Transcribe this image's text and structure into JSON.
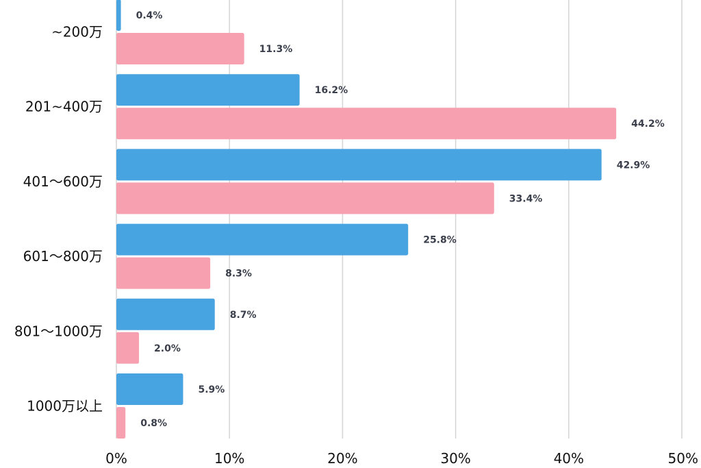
{
  "chart_data": {
    "type": "bar",
    "orientation": "horizontal",
    "categories": [
      "~200万",
      "201~400万",
      "401〜600万",
      "601〜800万",
      "801〜1000万",
      "1000万以上"
    ],
    "series": [
      {
        "values": [
          0.4,
          16.2,
          42.9,
          25.8,
          8.7,
          5.9
        ],
        "color": "#48a4e0"
      },
      {
        "values": [
          11.3,
          44.2,
          33.4,
          8.3,
          2.0,
          0.8
        ],
        "color": "#f6a0b0"
      }
    ],
    "value_suffix": "%",
    "xlim": [
      0,
      50
    ],
    "x_ticks": [
      0,
      10,
      20,
      30,
      40,
      50
    ],
    "x_tick_labels": [
      "0%",
      "10%",
      "20%",
      "30%",
      "40%",
      "50%"
    ],
    "grid": true,
    "legend": "none"
  }
}
